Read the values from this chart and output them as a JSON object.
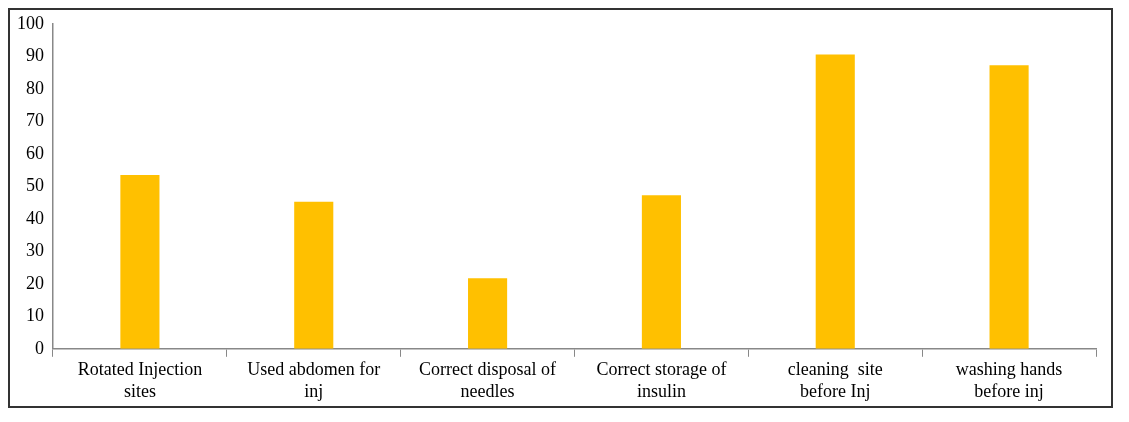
{
  "chart_data": {
    "type": "bar",
    "categories": [
      "Rotated Injection sites",
      "Used abdomen for inj",
      "Correct disposal of needles",
      "Correct storage of insulin",
      "cleaning  site before Inj",
      "washing hands before inj"
    ],
    "values": [
      53.5,
      45.3,
      21.7,
      47.3,
      90.6,
      87.3
    ],
    "color": "#ffc000",
    "ylim": [
      0,
      100
    ],
    "yticks": [
      0,
      10,
      20,
      30,
      40,
      50,
      60,
      70,
      80,
      90,
      100
    ],
    "grid": false,
    "legend": false
  }
}
